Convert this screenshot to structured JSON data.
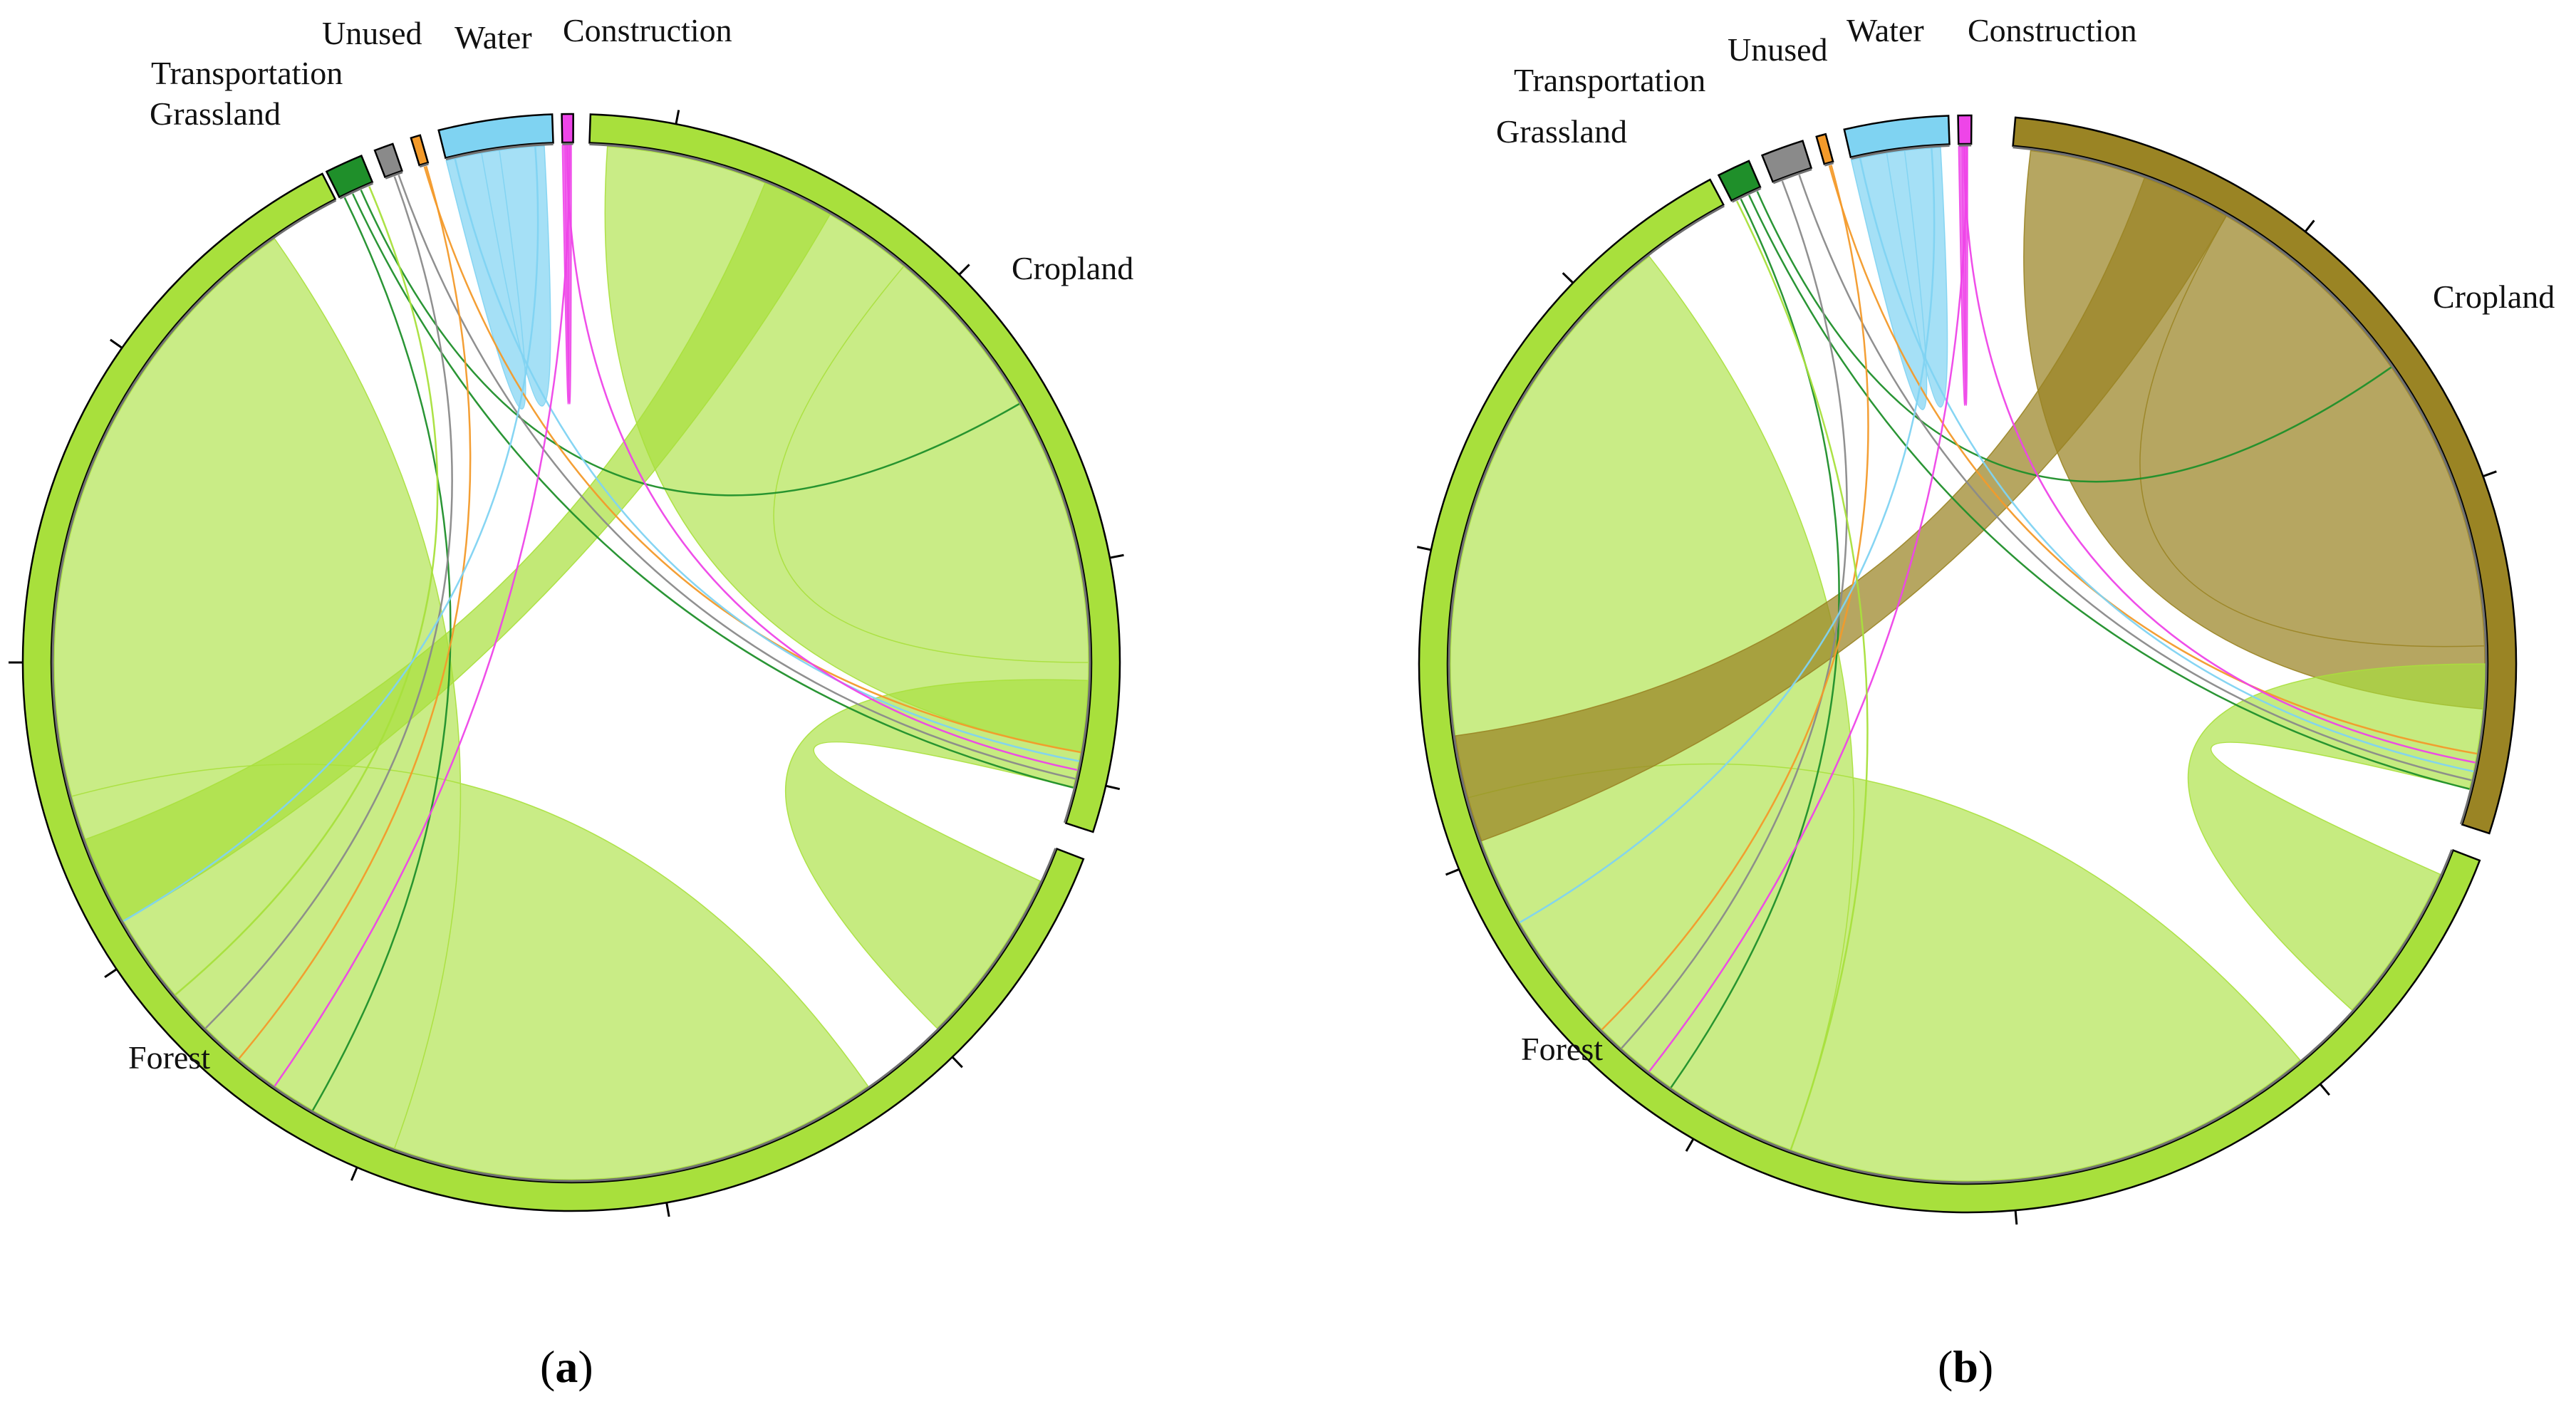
{
  "colors": {
    "Forest": "#a8e03c",
    "Cropland_a": "#a8e03c",
    "Cropland_b": "#9a8424",
    "Grassland": "#1f8f2a",
    "Transportation": "#8a8a8a",
    "Unused": "#f39a2a",
    "Water": "#7fd3f2",
    "Construction": "#ee45e8"
  },
  "panels": [
    {
      "id": "a",
      "caption_open": "(",
      "caption_letter": "a",
      "caption_close": ")",
      "sectors": [
        {
          "key": "forest",
          "label": "Forest",
          "color": "Forest"
        },
        {
          "key": "cropland",
          "label": "Cropland",
          "color": "Cropland_a"
        },
        {
          "key": "grassland",
          "label": "Grassland",
          "color": "Grassland"
        },
        {
          "key": "transportation",
          "label": "Transportation",
          "color": "Transportation"
        },
        {
          "key": "unused",
          "label": "Unused",
          "color": "Unused"
        },
        {
          "key": "water",
          "label": "Water",
          "color": "Water"
        },
        {
          "key": "construction",
          "label": "Construction",
          "color": "Construction"
        }
      ]
    },
    {
      "id": "b",
      "caption_open": "(",
      "caption_letter": "b",
      "caption_close": ")",
      "sectors": [
        {
          "key": "forest",
          "label": "Forest",
          "color": "Forest"
        },
        {
          "key": "cropland",
          "label": "Cropland",
          "color": "Cropland_b"
        },
        {
          "key": "grassland",
          "label": "Grassland",
          "color": "Grassland"
        },
        {
          "key": "transportation",
          "label": "Transportation",
          "color": "Transportation"
        },
        {
          "key": "unused",
          "label": "Unused",
          "color": "Unused"
        },
        {
          "key": "water",
          "label": "Water",
          "color": "Water"
        },
        {
          "key": "construction",
          "label": "Construction",
          "color": "Construction"
        }
      ]
    }
  ]
}
